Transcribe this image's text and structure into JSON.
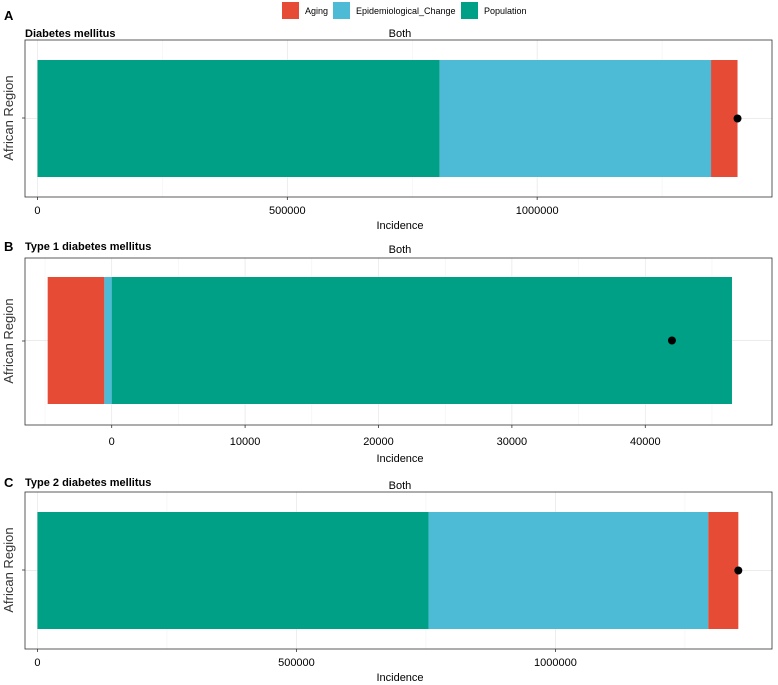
{
  "legend": {
    "items": [
      {
        "label": "Aging",
        "color": "#E64B35"
      },
      {
        "label": "Epidemiological_Change",
        "color": "#4DBBD5"
      },
      {
        "label": "Population",
        "color": "#00A087"
      }
    ]
  },
  "chart_data": [
    {
      "type": "bar",
      "orientation": "horizontal",
      "stacked": true,
      "panel_letter": "A",
      "title": "Diabetes mellitus",
      "subtitle": "Both",
      "xlabel": "Incidence",
      "ylabel": "African Region",
      "category": "African Region",
      "xlim": [
        -25000,
        1470000
      ],
      "xticks": [
        0,
        500000,
        1000000
      ],
      "xtick_labels": [
        "0",
        "500000",
        "1000000"
      ],
      "segments": [
        {
          "name": "Population",
          "start": 0,
          "end": 805000
        },
        {
          "name": "Epidemiological_Change",
          "start": 805000,
          "end": 1348000
        },
        {
          "name": "Aging",
          "start": 1348000,
          "end": 1401000
        }
      ],
      "point": 1401000
    },
    {
      "type": "bar",
      "orientation": "horizontal",
      "stacked": true,
      "panel_letter": "B",
      "title": "Type 1 diabetes mellitus",
      "subtitle": "Both",
      "xlabel": "Incidence",
      "ylabel": "African Region",
      "category": "African Region",
      "xlim": [
        -6500,
        49500
      ],
      "xticks": [
        0,
        10000,
        20000,
        30000,
        40000
      ],
      "xtick_labels": [
        "0",
        "10000",
        "20000",
        "30000",
        "40000"
      ],
      "segments": [
        {
          "name": "Aging",
          "start": -4800,
          "end": -550
        },
        {
          "name": "Epidemiological_Change",
          "start": -550,
          "end": 0
        },
        {
          "name": "Population",
          "start": 0,
          "end": 46500
        }
      ],
      "point": 42000
    },
    {
      "type": "bar",
      "orientation": "horizontal",
      "stacked": true,
      "panel_letter": "C",
      "title": "Type 2 diabetes mellitus",
      "subtitle": "Both",
      "xlabel": "Incidence",
      "ylabel": "African Region",
      "category": "African Region",
      "xlim": [
        -24000,
        1418000
      ],
      "xticks": [
        0,
        500000,
        1000000
      ],
      "xtick_labels": [
        "0",
        "500000",
        "1000000"
      ],
      "segments": [
        {
          "name": "Population",
          "start": 0,
          "end": 755000
        },
        {
          "name": "Epidemiological_Change",
          "start": 755000,
          "end": 1295000
        },
        {
          "name": "Aging",
          "start": 1295000,
          "end": 1353000
        }
      ],
      "point": 1353000
    }
  ]
}
